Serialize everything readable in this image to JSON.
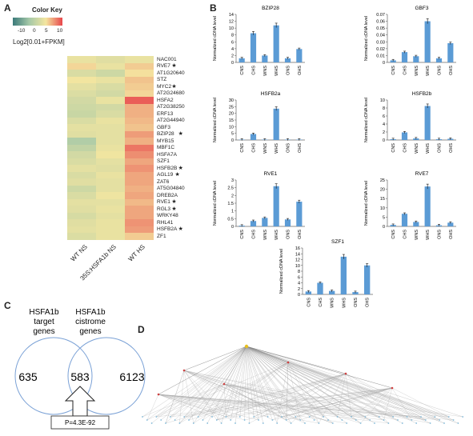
{
  "panels": {
    "a": "A",
    "b": "B",
    "c": "C",
    "d": "D"
  },
  "colorkey": {
    "title": "Color Key",
    "ticks": [
      "-10",
      "0",
      "5",
      "10"
    ],
    "label": "Log2[0.01+FPKM]",
    "stops": [
      "#3b7a7a",
      "#a6c9a8",
      "#f4e6a0",
      "#e8464b"
    ]
  },
  "heatmap": {
    "genes": [
      "NAC001",
      "RVE7",
      "AT1G20640",
      "STZ",
      "MYC2",
      "AT2G24680",
      "HSFA2",
      "AT2G38250",
      "ERF13",
      "AT2G44940",
      "GBF3",
      "BZIP28",
      "MYB15",
      "MBF1C",
      "HSFA7A",
      "SZF1",
      "HSFB2B",
      "AGL19",
      "ZAT6",
      "AT5G04840",
      "DREB2A",
      "RVE1",
      "RGL3",
      "WRKY48",
      "RHL41",
      "HSFB2A",
      "ZF1"
    ],
    "starred": [
      1,
      4,
      11,
      16,
      17,
      21,
      22,
      25
    ],
    "star_symbol": "★",
    "columns": [
      "WT NS",
      "35S:HSFA1b NS",
      "WT HS"
    ],
    "values": [
      [
        0.62,
        0.58,
        0.62
      ],
      [
        0.7,
        0.62,
        0.72
      ],
      [
        0.55,
        0.5,
        0.68
      ],
      [
        0.66,
        0.62,
        0.74
      ],
      [
        0.6,
        0.55,
        0.72
      ],
      [
        0.56,
        0.52,
        0.7
      ],
      [
        0.52,
        0.62,
        0.95
      ],
      [
        0.5,
        0.52,
        0.78
      ],
      [
        0.48,
        0.55,
        0.78
      ],
      [
        0.55,
        0.62,
        0.76
      ],
      [
        0.6,
        0.6,
        0.74
      ],
      [
        0.58,
        0.6,
        0.82
      ],
      [
        0.38,
        0.6,
        0.78
      ],
      [
        0.45,
        0.62,
        0.9
      ],
      [
        0.52,
        0.65,
        0.85
      ],
      [
        0.55,
        0.6,
        0.8
      ],
      [
        0.6,
        0.58,
        0.84
      ],
      [
        0.55,
        0.62,
        0.8
      ],
      [
        0.58,
        0.6,
        0.8
      ],
      [
        0.5,
        0.6,
        0.78
      ],
      [
        0.55,
        0.64,
        0.8
      ],
      [
        0.6,
        0.6,
        0.76
      ],
      [
        0.58,
        0.62,
        0.8
      ],
      [
        0.54,
        0.6,
        0.8
      ],
      [
        0.58,
        0.62,
        0.84
      ],
      [
        0.6,
        0.62,
        0.82
      ],
      [
        0.56,
        0.62,
        0.72
      ]
    ]
  },
  "chart_data": [
    {
      "type": "bar",
      "title": "BZIP28",
      "ylabel": "Normalized cDNA level",
      "categories": [
        "CNS",
        "CHS",
        "WNS",
        "WHS",
        "ONS",
        "OHS"
      ],
      "values": [
        1.2,
        8.5,
        2.0,
        10.8,
        1.2,
        3.9
      ],
      "ylim": [
        0,
        14
      ],
      "yticks": [
        "0",
        "2",
        "4",
        "6",
        "8",
        "10",
        "12",
        "14"
      ]
    },
    {
      "type": "bar",
      "title": "GBF3",
      "ylabel": "Normalized cDNA level",
      "categories": [
        "CNS",
        "CHS",
        "WNS",
        "WHS",
        "ONS",
        "OHS"
      ],
      "values": [
        0.003,
        0.015,
        0.009,
        0.06,
        0.006,
        0.028
      ],
      "ylim": [
        0,
        0.07
      ],
      "yticks": [
        "0",
        "0.01",
        "0.02",
        "0.03",
        "0.04",
        "0.05",
        "0.06",
        "0.07"
      ]
    },
    {
      "type": "bar",
      "title": "HSFB2a",
      "ylabel": "Normalized cDNA level",
      "categories": [
        "CNS",
        "CHS",
        "WNS",
        "WHS",
        "ONS",
        "OHS"
      ],
      "values": [
        0.3,
        4.5,
        0.3,
        23.5,
        0.3,
        0.3
      ],
      "ylim": [
        0,
        30
      ],
      "yticks": [
        "0",
        "5",
        "10",
        "15",
        "20",
        "25",
        "30"
      ]
    },
    {
      "type": "bar",
      "title": "HSFB2b",
      "ylabel": "Normalized cDNA level",
      "categories": [
        "CNS",
        "CHS",
        "WNS",
        "WHS",
        "ONS",
        "OHS"
      ],
      "values": [
        0.2,
        1.9,
        0.4,
        8.5,
        0.2,
        0.3
      ],
      "ylim": [
        0,
        10
      ],
      "yticks": [
        "0",
        "2",
        "4",
        "6",
        "8",
        "10"
      ]
    },
    {
      "type": "bar",
      "title": "RVE1",
      "ylabel": "Normalized cDNA level",
      "categories": [
        "CNS",
        "CHS",
        "WNS",
        "WHS",
        "ONS",
        "OHS"
      ],
      "values": [
        0.05,
        0.35,
        0.55,
        2.6,
        0.45,
        1.6
      ],
      "ylim": [
        0,
        3
      ],
      "yticks": [
        "0",
        "0.5",
        "1",
        "1.5",
        "2",
        "2.5",
        "3"
      ]
    },
    {
      "type": "bar",
      "title": "RVE7",
      "ylabel": "Normalized cDNA level",
      "categories": [
        "CNS",
        "CHS",
        "WNS",
        "WHS",
        "ONS",
        "OHS"
      ],
      "values": [
        0.8,
        6.8,
        2.4,
        21.5,
        0.6,
        2.0
      ],
      "ylim": [
        0,
        25
      ],
      "yticks": [
        "0",
        "5",
        "10",
        "15",
        "20",
        "25"
      ]
    },
    {
      "type": "bar",
      "title": "SZF1",
      "ylabel": "Normalized cDNA level",
      "categories": [
        "CNS",
        "CHS",
        "WNS",
        "WHS",
        "ONS",
        "OHS"
      ],
      "values": [
        1.0,
        4.0,
        1.2,
        13.0,
        0.8,
        10.0
      ],
      "ylim": [
        0,
        16
      ],
      "yticks": [
        "0",
        "2",
        "4",
        "6",
        "8",
        "10",
        "12",
        "14",
        "16"
      ]
    }
  ],
  "venn": {
    "left_title": [
      "HSFA1b",
      "target",
      "genes"
    ],
    "right_title": [
      "HSFA1b",
      "cistrome",
      "genes"
    ],
    "left_only": "635",
    "overlap": "583",
    "right_only": "6123",
    "pvalue": "P=4.3E-92"
  }
}
